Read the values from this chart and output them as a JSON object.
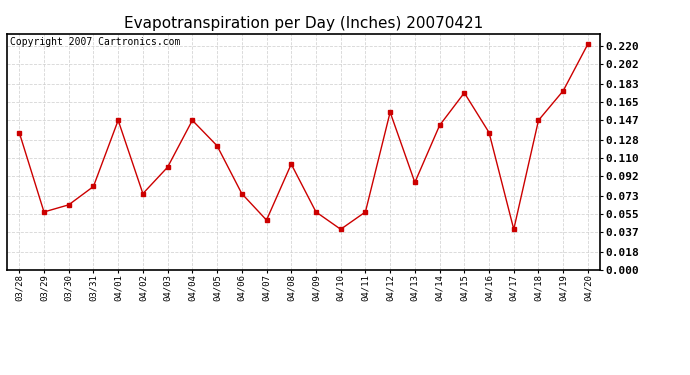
{
  "title": "Evapotranspiration per Day (Inches) 20070421",
  "copyright": "Copyright 2007 Cartronics.com",
  "x_labels": [
    "03/28",
    "03/29",
    "03/30",
    "03/31",
    "04/01",
    "04/02",
    "04/03",
    "04/04",
    "04/05",
    "04/06",
    "04/07",
    "04/08",
    "04/09",
    "04/10",
    "04/11",
    "04/12",
    "04/13",
    "04/14",
    "04/15",
    "04/16",
    "04/17",
    "04/18",
    "04/19",
    "04/20"
  ],
  "y_values": [
    0.135,
    0.057,
    0.064,
    0.082,
    0.147,
    0.075,
    0.101,
    0.147,
    0.122,
    0.075,
    0.049,
    0.104,
    0.057,
    0.04,
    0.057,
    0.155,
    0.086,
    0.142,
    0.174,
    0.135,
    0.04,
    0.147,
    0.176,
    0.222
  ],
  "y_ticks": [
    0.0,
    0.018,
    0.037,
    0.055,
    0.073,
    0.092,
    0.11,
    0.128,
    0.147,
    0.165,
    0.183,
    0.202,
    0.22
  ],
  "ylim": [
    0.0,
    0.232
  ],
  "line_color": "#cc0000",
  "marker": "s",
  "marker_size": 3,
  "bg_color": "#ffffff",
  "grid_color": "#cccccc",
  "title_fontsize": 11,
  "copyright_fontsize": 7,
  "xtick_fontsize": 6.5,
  "ytick_fontsize": 8
}
